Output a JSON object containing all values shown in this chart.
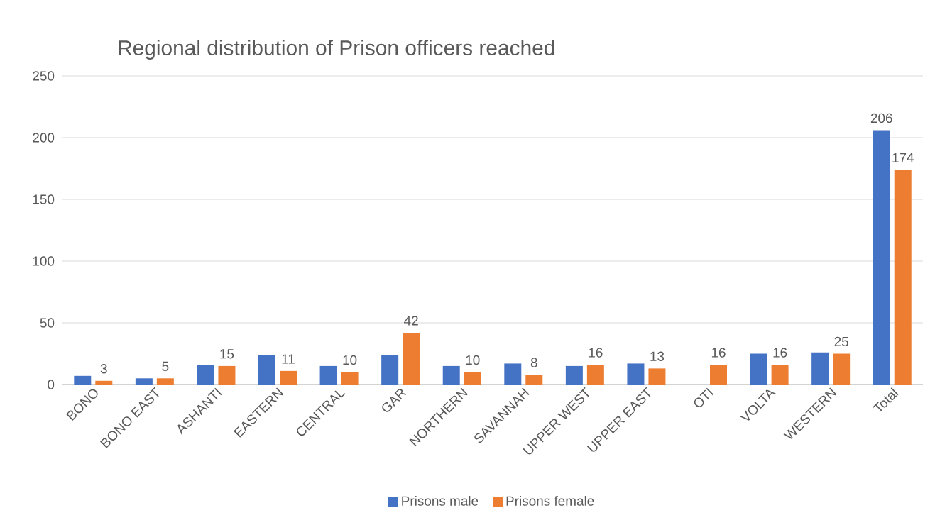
{
  "chart_data": {
    "type": "bar",
    "title": "Regional distribution of Prison officers reached",
    "categories": [
      "BONO",
      "BONO EAST",
      "ASHANTI",
      "EASTERN",
      "CENTRAL",
      "GAR",
      "NORTHERN",
      "SAVANNAH",
      "UPPER WEST",
      "UPPER EAST",
      "OTI",
      "VOLTA",
      "WESTERN",
      "Total"
    ],
    "series": [
      {
        "name": "Prisons male",
        "color": "#4472c4",
        "values": [
          7,
          5,
          16,
          24,
          15,
          24,
          15,
          17,
          15,
          17,
          null,
          25,
          26,
          206
        ],
        "value_labels": [
          null,
          null,
          null,
          null,
          null,
          null,
          null,
          null,
          null,
          null,
          null,
          null,
          null,
          "206"
        ]
      },
      {
        "name": "Prisons female",
        "color": "#ed7d31",
        "values": [
          3,
          5,
          15,
          11,
          10,
          42,
          10,
          8,
          16,
          13,
          16,
          16,
          25,
          174
        ],
        "value_labels": [
          "3",
          "5",
          "15",
          "11",
          "10",
          "42",
          "10",
          "8",
          "16",
          "13",
          "16",
          "16",
          "25",
          "174"
        ]
      }
    ],
    "ylim": [
      0,
      250
    ],
    "yticks": [
      0,
      50,
      100,
      150,
      200,
      250
    ],
    "grid": "y",
    "legend": "bottom"
  }
}
